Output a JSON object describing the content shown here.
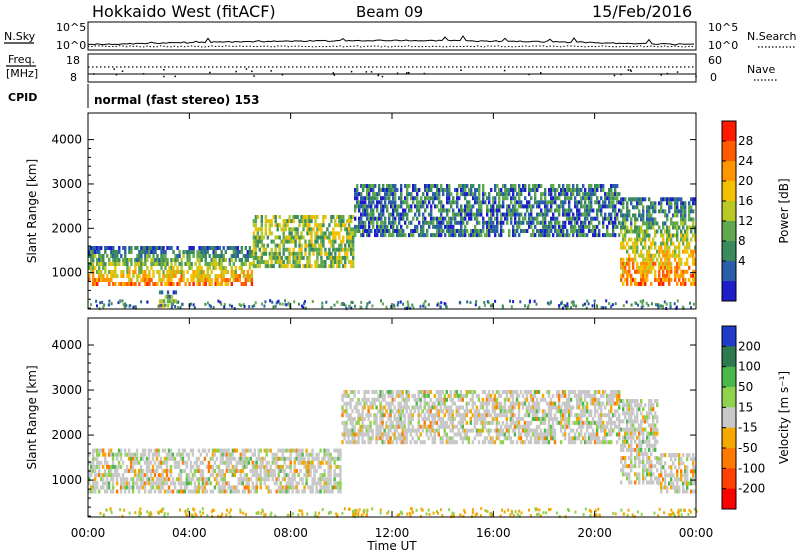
{
  "header": {
    "station": "Hokkaido West (fitACF)",
    "beam": "Beam 09",
    "date": "15/Feb/2016"
  },
  "noise_panel": {
    "left_label": "N.Sky",
    "right_label": "N.Search",
    "left_ticks": [
      "10^5",
      "10^0"
    ],
    "right_ticks": [
      "10^5",
      "10^0"
    ]
  },
  "freq_panel": {
    "left_label_line1": "Freq.",
    "left_label_line2": "[MHz]",
    "right_label": "Nave",
    "left_ticks": [
      "18",
      "8"
    ],
    "right_ticks": [
      "60",
      "0"
    ]
  },
  "cpid": {
    "label": "CPID",
    "program": "normal (fast stereo) 153"
  },
  "chart_data": [
    {
      "type": "heatmap",
      "parameter": "Power",
      "ylabel": "Slant Range [km]",
      "ylim": [
        180,
        4600
      ],
      "yticks": [
        "1000",
        "2000",
        "3000",
        "4000"
      ],
      "xlabel": "",
      "xlim": [
        "00:00",
        "24:00"
      ],
      "colorbar": {
        "label": "Power [dB]",
        "ticks": [
          "28",
          "24",
          "20",
          "16",
          "12",
          "8",
          "4"
        ],
        "colors": [
          "#ff1a00",
          "#ff5a00",
          "#ff9600",
          "#f5c000",
          "#b9c825",
          "#5fa84e",
          "#3b8a5c",
          "#2a5ea8",
          "#1e1ec8"
        ]
      },
      "echo_regions": [
        {
          "start_hour": 0.0,
          "end_hour": 6.5,
          "range_min_km": 700,
          "range_max_km": 1600,
          "dominant_level": "strong (>20 dB)"
        },
        {
          "start_hour": 6.5,
          "end_hour": 10.5,
          "range_min_km": 1100,
          "range_max_km": 2300,
          "dominant_level": "moderate (8-20 dB)"
        },
        {
          "start_hour": 10.5,
          "end_hour": 21.0,
          "range_min_km": 1800,
          "range_max_km": 3000,
          "dominant_level": "weak-moderate (4-16 dB)"
        },
        {
          "start_hour": 21.0,
          "end_hour": 24.0,
          "range_min_km": 700,
          "range_max_km": 2700,
          "dominant_level": "strong (>20 dB)"
        },
        {
          "start_hour": 2.8,
          "end_hour": 3.5,
          "range_min_km": 200,
          "range_max_km": 600,
          "dominant_level": "strong (>20 dB)"
        }
      ]
    },
    {
      "type": "heatmap",
      "parameter": "Velocity",
      "ylabel": "Slant Range [km]",
      "ylim": [
        180,
        4600
      ],
      "yticks": [
        "1000",
        "2000",
        "3000",
        "4000"
      ],
      "xlabel": "Time UT",
      "xlim": [
        "00:00",
        "24:00"
      ],
      "xticks": [
        "00:00",
        "04:00",
        "08:00",
        "12:00",
        "16:00",
        "20:00",
        "00:00"
      ],
      "colorbar": {
        "label": "Velocity [m s⁻¹]",
        "ticks": [
          "200",
          "100",
          "50",
          "15",
          "-15",
          "-50",
          "-100",
          "-200"
        ],
        "colors": [
          "#1e3cc8",
          "#2e7a4e",
          "#4cb84c",
          "#8ed24e",
          "#c8c8c8",
          "#f5a800",
          "#ff7800",
          "#ff4000",
          "#ff0000"
        ]
      },
      "echo_regions": [
        {
          "start_hour": 0.0,
          "end_hour": 10.0,
          "range_min_km": 700,
          "range_max_km": 1700,
          "dominant_level": "near zero (-15 to 15)"
        },
        {
          "start_hour": 10.0,
          "end_hour": 21.0,
          "range_min_km": 1800,
          "range_max_km": 3000,
          "dominant_level": "near zero, mixed -50 to 50"
        },
        {
          "start_hour": 21.0,
          "end_hour": 22.5,
          "range_min_km": 900,
          "range_max_km": 2800,
          "dominant_level": "15 to 50"
        },
        {
          "start_hour": 22.5,
          "end_hour": 24.0,
          "range_min_km": 700,
          "range_max_km": 1600,
          "dominant_level": "near zero (-15 to 15)"
        }
      ]
    }
  ]
}
